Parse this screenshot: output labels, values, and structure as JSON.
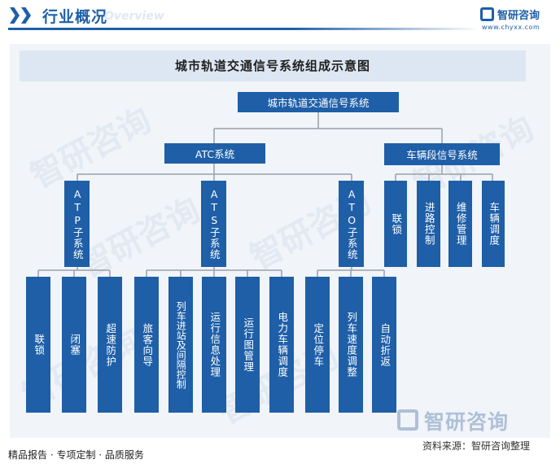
{
  "header": {
    "title": "行业概况",
    "ghost_text": "Overview",
    "brand_name": "智研咨询",
    "brand_url": "www.chyxx.com"
  },
  "diagram": {
    "title": "城市轨道交通信号系统组成示意图",
    "root": "城市轨道交通信号系统",
    "level1": [
      "ATC系统",
      "车辆段信号系统"
    ],
    "atc_subsystems": [
      "ATP子系统",
      "ATS子系统",
      "ATO子系统"
    ],
    "atp_functions": [
      "联锁",
      "闭塞",
      "超速防护"
    ],
    "ats_functions": [
      "旅客向导",
      "列车进站及间隔控制",
      "运行信息处理",
      "运行图管理",
      "电力车辆调度"
    ],
    "ato_functions": [
      "定位停车",
      "列车速度调整",
      "自动折返"
    ],
    "depot_functions": [
      "联锁",
      "进路控制",
      "维修管理",
      "车辆调度"
    ]
  },
  "footer": {
    "left": "精品报告 · 专项定制 · 品质服务",
    "source": "资料来源：智研咨询整理",
    "watermark": "智研咨询"
  },
  "colors": {
    "node": "#1e5fa8",
    "panel": "#f1f4f8",
    "title_bar": "#dde7f3",
    "connector": "#9aa0a8"
  }
}
